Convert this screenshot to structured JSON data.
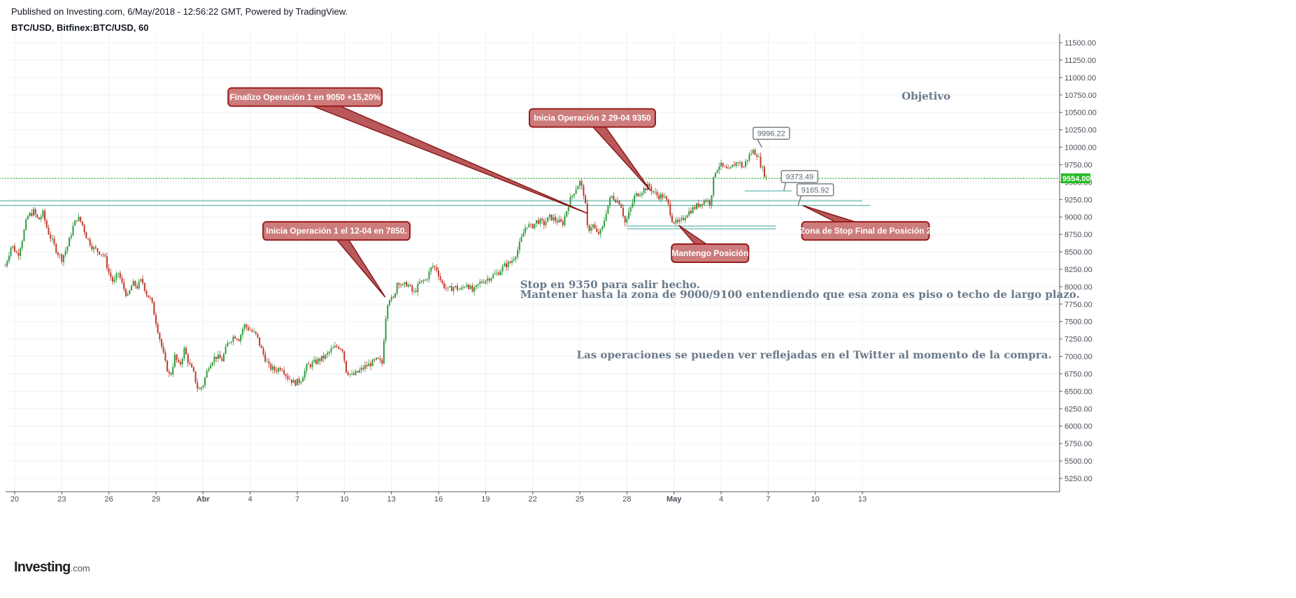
{
  "header": {
    "published": "Published on Investing.com, 6/May/2018 - 12:56:22 GMT, Powered by TradingView.",
    "symbol": "BTC/USD, Bitfinex:BTC/USD, 60"
  },
  "logo": {
    "brand": "Investing",
    "suffix": ".com"
  },
  "colors": {
    "up": "#2e9c3e",
    "down": "#c0392b",
    "current_price_bg": "#22bb22",
    "trendline": "#3aa89b",
    "callout_fill": "#cc7c7c",
    "callout_border": "#9b1b1b"
  },
  "chart_data": {
    "type": "candlestick",
    "symbol": "BTC/USD",
    "exchange": "Bitfinex",
    "interval": "60",
    "y_range": [
      5000,
      11600
    ],
    "x_tick_labels": [
      "20",
      "23",
      "26",
      "29",
      "Abr",
      "4",
      "7",
      "10",
      "13",
      "16",
      "19",
      "22",
      "25",
      "28",
      "May",
      "4",
      "7",
      "10",
      "13"
    ],
    "x_tick_days": [
      -11,
      -8,
      -5,
      -2,
      1,
      4,
      7,
      10,
      13,
      16,
      19,
      22,
      25,
      28,
      31,
      34,
      37,
      40,
      43
    ],
    "y_tick_values": [
      5250,
      5500,
      5750,
      6000,
      6250,
      6500,
      6750,
      7000,
      7250,
      7500,
      7750,
      8000,
      8250,
      8500,
      8750,
      9000,
      9250,
      9500,
      9750,
      10000,
      10250,
      10500,
      10750,
      11000,
      11250,
      11500
    ],
    "y_tick_labels": [
      "5250.00",
      "5500.00",
      "5750.00",
      "6000.00",
      "6250.00",
      "6500.00",
      "6750.00",
      "7000.00",
      "7250.00",
      "7500.00",
      "7750.00",
      "8000.00",
      "8250.00",
      "8500.00",
      "8750.00",
      "9000.00",
      "9250.00",
      "9500.00",
      "9750.00",
      "10000.00",
      "10250.00",
      "10500.00",
      "10750.00",
      "11000.00",
      "11250.00",
      "11500.00"
    ],
    "current_price": 9554,
    "current_price_label": "9554.00",
    "price_path": [
      [
        -11.6,
        8300
      ],
      [
        -11.2,
        8600
      ],
      [
        -10.8,
        8450
      ],
      [
        -10.5,
        8700
      ],
      [
        -10.2,
        9000
      ],
      [
        -9.8,
        9080
      ],
      [
        -9.5,
        8950
      ],
      [
        -9.2,
        9050
      ],
      [
        -8.9,
        8800
      ],
      [
        -8.6,
        8650
      ],
      [
        -8.3,
        8500
      ],
      [
        -8.0,
        8400
      ],
      [
        -7.6,
        8600
      ],
      [
        -7.3,
        8850
      ],
      [
        -7.0,
        9000
      ],
      [
        -6.7,
        8900
      ],
      [
        -6.4,
        8700
      ],
      [
        -6.0,
        8550
      ],
      [
        -5.6,
        8500
      ],
      [
        -5.3,
        8450
      ],
      [
        -5.0,
        8200
      ],
      [
        -4.7,
        8050
      ],
      [
        -4.4,
        8200
      ],
      [
        -4.1,
        8000
      ],
      [
        -3.8,
        7850
      ],
      [
        -3.5,
        8050
      ],
      [
        -3.2,
        8000
      ],
      [
        -2.9,
        8100
      ],
      [
        -2.6,
        7900
      ],
      [
        -2.3,
        7800
      ],
      [
        -2.0,
        7500
      ],
      [
        -1.7,
        7200
      ],
      [
        -1.4,
        6900
      ],
      [
        -1.1,
        6700
      ],
      [
        -0.8,
        7000
      ],
      [
        -0.5,
        6850
      ],
      [
        -0.2,
        7100
      ],
      [
        0.1,
        6900
      ],
      [
        0.4,
        6750
      ],
      [
        0.7,
        6500
      ],
      [
        1.0,
        6600
      ],
      [
        1.4,
        6900
      ],
      [
        1.8,
        7000
      ],
      [
        2.2,
        6950
      ],
      [
        2.6,
        7200
      ],
      [
        3.0,
        7300
      ],
      [
        3.3,
        7250
      ],
      [
        3.6,
        7450
      ],
      [
        4.0,
        7380
      ],
      [
        4.4,
        7300
      ],
      [
        4.8,
        7050
      ],
      [
        5.2,
        6850
      ],
      [
        5.6,
        6800
      ],
      [
        6.0,
        6850
      ],
      [
        6.4,
        6700
      ],
      [
        6.8,
        6620
      ],
      [
        7.2,
        6650
      ],
      [
        7.6,
        6850
      ],
      [
        8.0,
        6900
      ],
      [
        8.4,
        6950
      ],
      [
        8.8,
        7000
      ],
      [
        9.2,
        7100
      ],
      [
        9.6,
        7150
      ],
      [
        9.9,
        7100
      ],
      [
        10.1,
        6800
      ],
      [
        10.5,
        6720
      ],
      [
        10.9,
        6780
      ],
      [
        11.3,
        6850
      ],
      [
        11.7,
        6900
      ],
      [
        12.1,
        6950
      ],
      [
        12.4,
        6900
      ],
      [
        12.6,
        7500
      ],
      [
        12.8,
        7850
      ],
      [
        13.1,
        7800
      ],
      [
        13.4,
        8100
      ],
      [
        13.7,
        8000
      ],
      [
        14.0,
        8050
      ],
      [
        14.4,
        7900
      ],
      [
        14.8,
        8050
      ],
      [
        15.2,
        8100
      ],
      [
        15.6,
        8300
      ],
      [
        15.9,
        8250
      ],
      [
        16.2,
        8050
      ],
      [
        16.6,
        7950
      ],
      [
        17.0,
        8000
      ],
      [
        17.4,
        7950
      ],
      [
        17.8,
        8050
      ],
      [
        18.2,
        7920
      ],
      [
        18.6,
        8050
      ],
      [
        19.0,
        8100
      ],
      [
        19.4,
        8150
      ],
      [
        19.8,
        8200
      ],
      [
        20.2,
        8300
      ],
      [
        20.6,
        8350
      ],
      [
        21.0,
        8500
      ],
      [
        21.3,
        8700
      ],
      [
        21.6,
        8900
      ],
      [
        21.9,
        8850
      ],
      [
        22.3,
        8950
      ],
      [
        22.7,
        8900
      ],
      [
        23.1,
        9000
      ],
      [
        23.5,
        8950
      ],
      [
        23.9,
        8900
      ],
      [
        24.3,
        9200
      ],
      [
        24.7,
        9400
      ],
      [
        25.0,
        9500
      ],
      [
        25.3,
        9300
      ],
      [
        25.5,
        8800
      ],
      [
        25.8,
        8900
      ],
      [
        26.1,
        8750
      ],
      [
        26.4,
        8800
      ],
      [
        26.7,
        9100
      ],
      [
        27.0,
        9300
      ],
      [
        27.3,
        9250
      ],
      [
        27.6,
        9200
      ],
      [
        27.9,
        8900
      ],
      [
        28.2,
        9100
      ],
      [
        28.5,
        9300
      ],
      [
        28.8,
        9350
      ],
      [
        29.1,
        9400
      ],
      [
        29.4,
        9450
      ],
      [
        29.7,
        9350
      ],
      [
        30.0,
        9300
      ],
      [
        30.3,
        9300
      ],
      [
        30.6,
        9200
      ],
      [
        30.9,
        8950
      ],
      [
        31.2,
        8900
      ],
      [
        31.5,
        8950
      ],
      [
        31.8,
        9050
      ],
      [
        32.1,
        9100
      ],
      [
        32.4,
        9150
      ],
      [
        32.7,
        9200
      ],
      [
        33.0,
        9250
      ],
      [
        33.3,
        9200
      ],
      [
        33.6,
        9650
      ],
      [
        33.9,
        9750
      ],
      [
        34.2,
        9700
      ],
      [
        34.5,
        9650
      ],
      [
        34.8,
        9750
      ],
      [
        35.1,
        9800
      ],
      [
        35.4,
        9700
      ],
      [
        35.7,
        9850
      ],
      [
        36.0,
        9950
      ],
      [
        36.3,
        9900
      ],
      [
        36.6,
        9700
      ],
      [
        36.9,
        9554
      ]
    ],
    "horizontal_lines": [
      {
        "name": "current-price-line",
        "value": 9554,
        "x1": -12,
        "x2": 63,
        "style": "dotted",
        "color": "#22aa22"
      },
      {
        "name": "stop-zone-line-1",
        "value": 9232,
        "x1": -12,
        "x2": 43,
        "style": "solid",
        "color": "#3aa89b"
      },
      {
        "name": "stop-zone-line-2",
        "value": 9165,
        "x1": -12,
        "x2": 43.5,
        "style": "solid",
        "color": "#3aa89b"
      },
      {
        "name": "support-line-1",
        "value": 8870,
        "x1": 28,
        "x2": 37.5,
        "style": "solid",
        "color": "#3aa89b"
      },
      {
        "name": "support-line-2",
        "value": 8830,
        "x1": 28,
        "x2": 37.5,
        "style": "solid",
        "color": "#3aa89b"
      },
      {
        "name": "level-9373-line",
        "value": 9373,
        "x1": 35.5,
        "x2": 38.5,
        "style": "solid",
        "color": "#3aa89b"
      }
    ],
    "price_labels": [
      {
        "text": "9996.22",
        "x": 37.2,
        "y": 10200,
        "ax": 36.6,
        "ay": 9996
      },
      {
        "text": "9373.49",
        "x": 39.0,
        "y": 9580,
        "ax": 38.0,
        "ay": 9373
      },
      {
        "text": "9165.92",
        "x": 40.0,
        "y": 9390,
        "ax": 38.9,
        "ay": 9166
      }
    ],
    "callouts": [
      {
        "name": "callout-finalizo-operacion-1",
        "text": "Finalizo Operación 1 en 9050 +15,20%",
        "x": 7.5,
        "y": 10720,
        "ax": 25.5,
        "ay": 9050,
        "w": 220
      },
      {
        "name": "callout-inicia-operacion-2",
        "text": "Inicia Operación 2 29-04 9350",
        "x": 25.8,
        "y": 10420,
        "ax": 29.5,
        "ay": 9380,
        "w": 180
      },
      {
        "name": "callout-inicia-operacion-1",
        "text": "Inicia Operación 1 el 12-04 en 7850.",
        "x": 9.5,
        "y": 8800,
        "ax": 12.6,
        "ay": 7850,
        "w": 210
      },
      {
        "name": "callout-mantengo-posicion",
        "text": "Mantengo Posición",
        "x": 33.3,
        "y": 8480,
        "ax": 31.3,
        "ay": 8880,
        "w": 110
      },
      {
        "name": "callout-zona-stop",
        "text": "Zona de Stop Final de Posición 2",
        "x": 43.2,
        "y": 8800,
        "ax": 39.2,
        "ay": 9165,
        "w": 182
      }
    ],
    "annotations": [
      {
        "name": "note-objetivo",
        "text": "Objetivo",
        "x": 45.5,
        "y": 10680,
        "size": 15
      },
      {
        "name": "note-stop",
        "text": "Stop en 9350 para salir hecho.",
        "x": 21.2,
        "y": 7980,
        "size": 15
      },
      {
        "name": "note-mantener",
        "text": "Mantener hasta la zona de 9000/9100 entendiendo que esa zona es piso o techo de largo plazo.",
        "x": 21.2,
        "y": 7840,
        "size": 15
      },
      {
        "name": "note-twitter",
        "text": "Las operaciones se pueden ver reflejadas en el Twitter al momento de la compra.",
        "x": 24.8,
        "y": 6970,
        "size": 15
      }
    ]
  }
}
